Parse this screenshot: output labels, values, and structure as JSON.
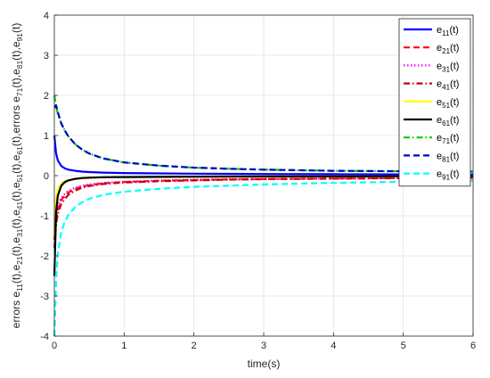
{
  "chart_data": {
    "type": "line",
    "xlabel": "time(s)",
    "ylabel": "errors e11(t),e21(t),e31(t),e41(t),e51(t),e61(t),errors e71(t),e81(t),e91(t)",
    "ylabel_parts": [
      [
        "errors e",
        ""
      ],
      [
        "11",
        "sub"
      ],
      [
        "(t),e",
        ""
      ],
      [
        "21",
        "sub"
      ],
      [
        "(t),e",
        ""
      ],
      [
        "31",
        "sub"
      ],
      [
        "(t),e",
        ""
      ],
      [
        "41",
        "sub"
      ],
      [
        "(t),e",
        ""
      ],
      [
        "51",
        "sub"
      ],
      [
        "(t),e",
        ""
      ],
      [
        "61",
        "sub"
      ],
      [
        "(t),errors e",
        ""
      ],
      [
        "71",
        "sub"
      ],
      [
        "(t),e",
        ""
      ],
      [
        "81",
        "sub"
      ],
      [
        "(t),e",
        ""
      ],
      [
        "91",
        "sub"
      ],
      [
        "(t)",
        ""
      ]
    ],
    "xlim": [
      0,
      6
    ],
    "ylim": [
      -4,
      4
    ],
    "xticks": [
      "0",
      "1",
      "2",
      "3",
      "4",
      "5",
      "6"
    ],
    "yticks": [
      "-4",
      "-3",
      "-2",
      "-1",
      "0",
      "1",
      "2",
      "3",
      "4"
    ],
    "grid": true,
    "legend_position": "top-right",
    "x": [
      0,
      0.025,
      0.05,
      0.1,
      0.15,
      0.2,
      0.3,
      0.4,
      0.5,
      0.7,
      1.0,
      1.5,
      2.0,
      2.5,
      3.0,
      4.0,
      5.0,
      6.0
    ],
    "series": [
      {
        "name": "e11(t)",
        "base": "e",
        "sub": "11",
        "color": "#0000ff",
        "dash": "solid",
        "values": [
          1.0,
          0.55,
          0.38,
          0.24,
          0.18,
          0.15,
          0.12,
          0.1,
          0.09,
          0.075,
          0.065,
          0.055,
          0.05,
          0.045,
          0.04,
          0.035,
          0.032,
          0.03
        ]
      },
      {
        "name": "e21(t)",
        "base": "e",
        "sub": "21",
        "color": "#ff0000",
        "dash": "dash",
        "values": [
          -1.6,
          -1.1,
          -0.85,
          -0.6,
          -0.5,
          -0.42,
          -0.33,
          -0.27,
          -0.24,
          -0.19,
          -0.16,
          -0.13,
          -0.11,
          -0.095,
          -0.085,
          -0.07,
          -0.06,
          -0.055
        ]
      },
      {
        "name": "e31(t)",
        "base": "e",
        "sub": "31",
        "color": "#ff00ff",
        "dash": "dot",
        "values": [
          -1.4,
          -0.95,
          -0.75,
          -0.55,
          -0.45,
          -0.38,
          -0.3,
          -0.25,
          -0.22,
          -0.18,
          -0.15,
          -0.12,
          -0.1,
          -0.09,
          -0.08,
          -0.07,
          -0.06,
          -0.055
        ]
      },
      {
        "name": "e41(t)",
        "base": "e",
        "sub": "41",
        "color": "#cc0000",
        "dash": "dashdot",
        "values": [
          -1.8,
          -1.2,
          -0.95,
          -0.7,
          -0.58,
          -0.48,
          -0.37,
          -0.3,
          -0.26,
          -0.21,
          -0.17,
          -0.14,
          -0.12,
          -0.1,
          -0.09,
          -0.075,
          -0.065,
          -0.06
        ]
      },
      {
        "name": "e51(t)",
        "base": "e",
        "sub": "51",
        "color": "#ffff00",
        "dash": "solid",
        "values": [
          -1.5,
          -0.6,
          -0.35,
          -0.2,
          -0.14,
          -0.11,
          -0.08,
          -0.065,
          -0.055,
          -0.045,
          -0.04,
          -0.035,
          -0.03,
          -0.028,
          -0.025,
          -0.022,
          -0.02,
          -0.02
        ]
      },
      {
        "name": "e61(t)",
        "base": "e",
        "sub": "61",
        "color": "#000000",
        "dash": "solid",
        "values": [
          -2.5,
          -0.9,
          -0.5,
          -0.25,
          -0.16,
          -0.12,
          -0.08,
          -0.06,
          -0.05,
          -0.04,
          -0.035,
          -0.03,
          -0.025,
          -0.022,
          -0.02,
          -0.018,
          -0.016,
          -0.015
        ]
      },
      {
        "name": "e71(t)",
        "base": "e",
        "sub": "71",
        "color": "#00cc00",
        "dash": "dashdot",
        "values": [
          2.0,
          1.72,
          1.55,
          1.3,
          1.12,
          0.98,
          0.78,
          0.65,
          0.55,
          0.43,
          0.33,
          0.25,
          0.2,
          0.17,
          0.15,
          0.12,
          0.11,
          0.1
        ]
      },
      {
        "name": "e81(t)",
        "base": "e",
        "sub": "81",
        "color": "#0000cc",
        "dash": "dash",
        "values": [
          1.7,
          1.75,
          1.58,
          1.3,
          1.12,
          0.98,
          0.78,
          0.65,
          0.55,
          0.43,
          0.33,
          0.25,
          0.2,
          0.17,
          0.15,
          0.12,
          0.11,
          0.1
        ]
      },
      {
        "name": "e91(t)",
        "base": "e",
        "sub": "91",
        "color": "#00ffff",
        "dash": "dash",
        "values": [
          -4.0,
          -2.6,
          -1.95,
          -1.4,
          -1.15,
          -0.98,
          -0.78,
          -0.66,
          -0.58,
          -0.48,
          -0.4,
          -0.33,
          -0.28,
          -0.25,
          -0.22,
          -0.18,
          -0.15,
          -0.13
        ]
      }
    ]
  }
}
